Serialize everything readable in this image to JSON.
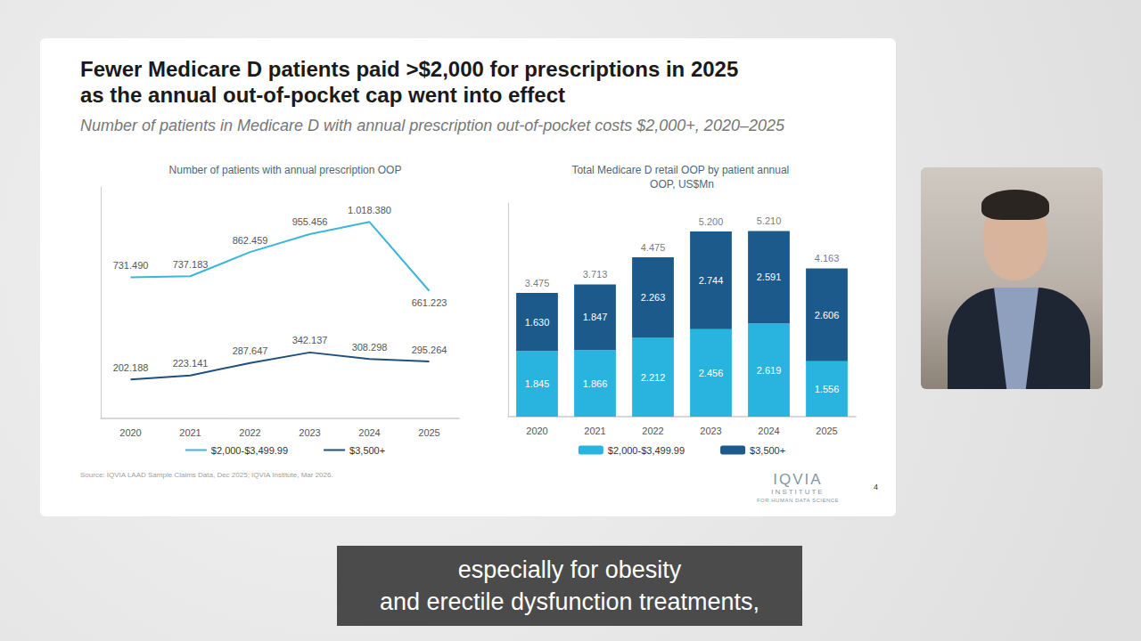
{
  "title": [
    "Fewer Medicare D patients paid >$2,000 for prescriptions in 2025",
    "as the annual out-of-pocket cap went into effect"
  ],
  "subtitle": "Number of patients in Medicare D with annual prescription out-of-pocket costs $2,000+, 2020–2025",
  "source": "Source: IQVIA LAAD Sample Claims Data, Dec 2025; IQVIA Institute, Mar 2026.",
  "logo": {
    "name": "IQVIA",
    "line1": "INSTITUTE",
    "line2": "FOR HUMAN DATA SCIENCE"
  },
  "page_number": 4,
  "caption": [
    "especially for obesity",
    "and erectile dysfunction treatments,"
  ],
  "chart_data": [
    {
      "type": "line",
      "title": "Number of patients with annual prescription OOP",
      "categories": [
        "2020",
        "2021",
        "2022",
        "2023",
        "2024",
        "2025"
      ],
      "ylim": [
        0,
        1200000
      ],
      "tick_labels": "x",
      "grid": false,
      "legend": "bottom",
      "data_labels": true,
      "marker": "none",
      "series": [
        {
          "name": "$2,000-$3,499.99",
          "color": "#3bb6d8",
          "values": [
            731490,
            737183,
            862459,
            955456,
            1018380,
            661223
          ],
          "value_labels": [
            "731.490",
            "737.183",
            "862.459",
            "955.456",
            "1.018.380",
            "661.223"
          ]
        },
        {
          "name": "$3,500+",
          "color": "#1f4f7a",
          "values": [
            202188,
            223141,
            287647,
            342137,
            308298,
            295264
          ],
          "value_labels": [
            "202.188",
            "223.141",
            "287.647",
            "342.137",
            "308.298",
            "295.264"
          ]
        }
      ]
    },
    {
      "type": "bar",
      "title": "Total Medicare D retail OOP by patient annual OOP, US$Mn",
      "categories": [
        "2020",
        "2021",
        "2022",
        "2023",
        "2024",
        "2025"
      ],
      "ylim": [
        0,
        6000
      ],
      "tick_labels": "x",
      "grid": false,
      "legend": "bottom",
      "stacked": true,
      "data_labels": true,
      "series": [
        {
          "name": "$2,000-$3,499.99",
          "color": "#29b4e0",
          "values": [
            1845,
            1866,
            2212,
            2456,
            2619,
            1556
          ],
          "value_labels": [
            "1.845",
            "1.866",
            "2.212",
            "2.456",
            "2.619",
            "1.556"
          ]
        },
        {
          "name": "$3,500+",
          "color": "#1c5a8c",
          "values": [
            1630,
            1847,
            2263,
            2744,
            2591,
            2606
          ],
          "value_labels": [
            "1.630",
            "1.847",
            "2.263",
            "2.744",
            "2.591",
            "2.606"
          ]
        }
      ],
      "totals": [
        3475,
        3713,
        4475,
        5200,
        5210,
        4163
      ],
      "total_labels": [
        "3.475",
        "3.713",
        "4.475",
        "5.200",
        "5.210",
        "4.163"
      ]
    }
  ]
}
